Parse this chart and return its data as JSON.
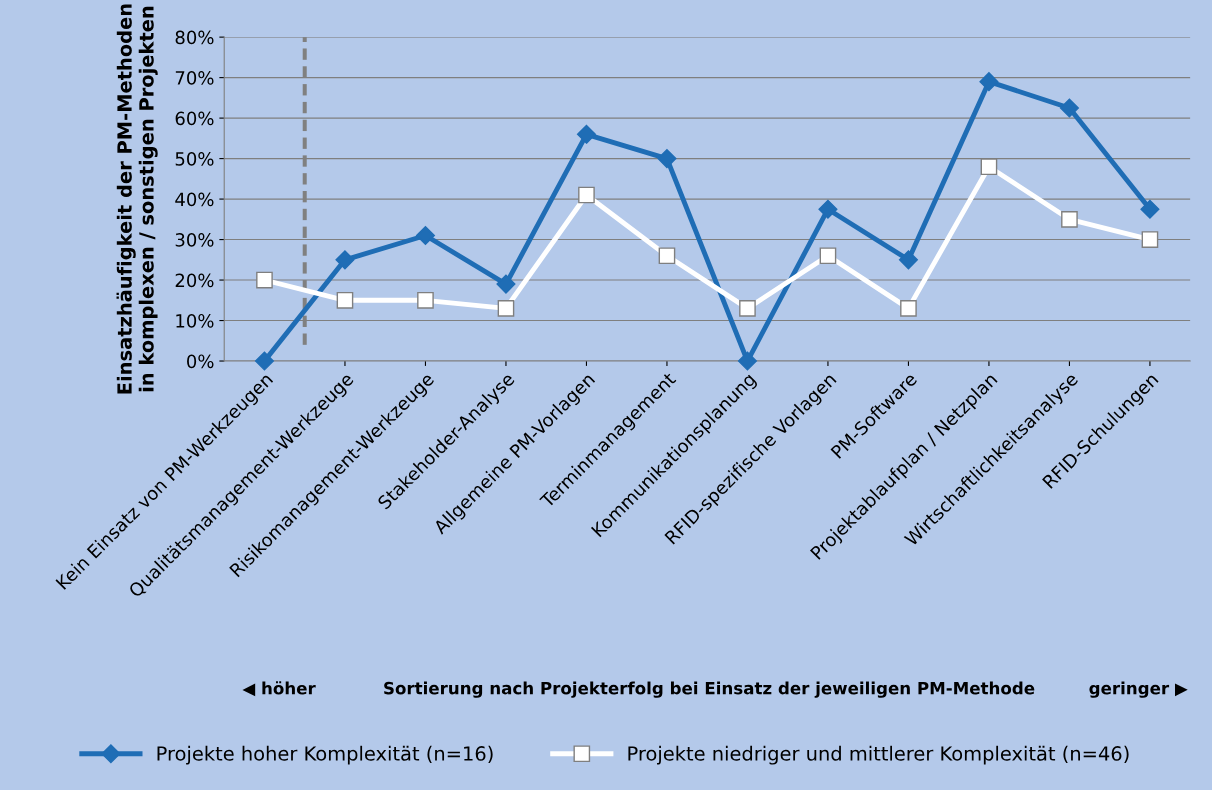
{
  "chart_data": {
    "type": "line",
    "ylabel": "Einsatzhäufigkeit der PM-Methoden\nin komplexen / sonstigen Projekten",
    "categories": [
      "Kein Einsatz von PM-Werkzeugen",
      "Qualitätsmanagement-Werkzeuge",
      "Risikomanagement-Werkzeuge",
      "Stakeholder-Analyse",
      "Allgemeine PM-Vorlagen",
      "Terminmanagement",
      "Kommunikationsplanung",
      "RFID-spezifische Vorlagen",
      "PM-Software",
      "Projektablaufplan / Netzplan",
      "Wirtschaftlichkeitsanalyse",
      "RFID-Schulungen"
    ],
    "series": [
      {
        "name": "Projekte hoher Komplexität (n=16)",
        "color": "#1f6db5",
        "marker": "diamond",
        "values": [
          0,
          25,
          31,
          19,
          56,
          50,
          0,
          37.5,
          25,
          69,
          62.5,
          37.5
        ]
      },
      {
        "name": "Projekte niedriger und mittlerer Komplexität (n=46)",
        "color": "#ffffff",
        "marker": "square",
        "values": [
          20,
          15,
          15,
          13,
          41,
          26,
          13,
          26,
          13,
          48,
          35,
          30
        ]
      }
    ],
    "ylim": [
      0,
      80
    ],
    "yticks": [
      {
        "value": 0,
        "label": "0%"
      },
      {
        "value": 10,
        "label": "10%"
      },
      {
        "value": 20,
        "label": "20%"
      },
      {
        "value": 30,
        "label": "30%"
      },
      {
        "value": 40,
        "label": "40%"
      },
      {
        "value": 50,
        "label": "50%"
      },
      {
        "value": 60,
        "label": "60%"
      },
      {
        "value": 70,
        "label": "70%"
      },
      {
        "value": 80,
        "label": "80%"
      }
    ],
    "grid": "y",
    "legend": "bottom",
    "line_style": "solid",
    "annotations": [
      "◀ höher",
      "Sortierung nach Projekterfolg bei Einsatz der jeweiligen PM-Methode",
      "geringer ▶"
    ]
  }
}
